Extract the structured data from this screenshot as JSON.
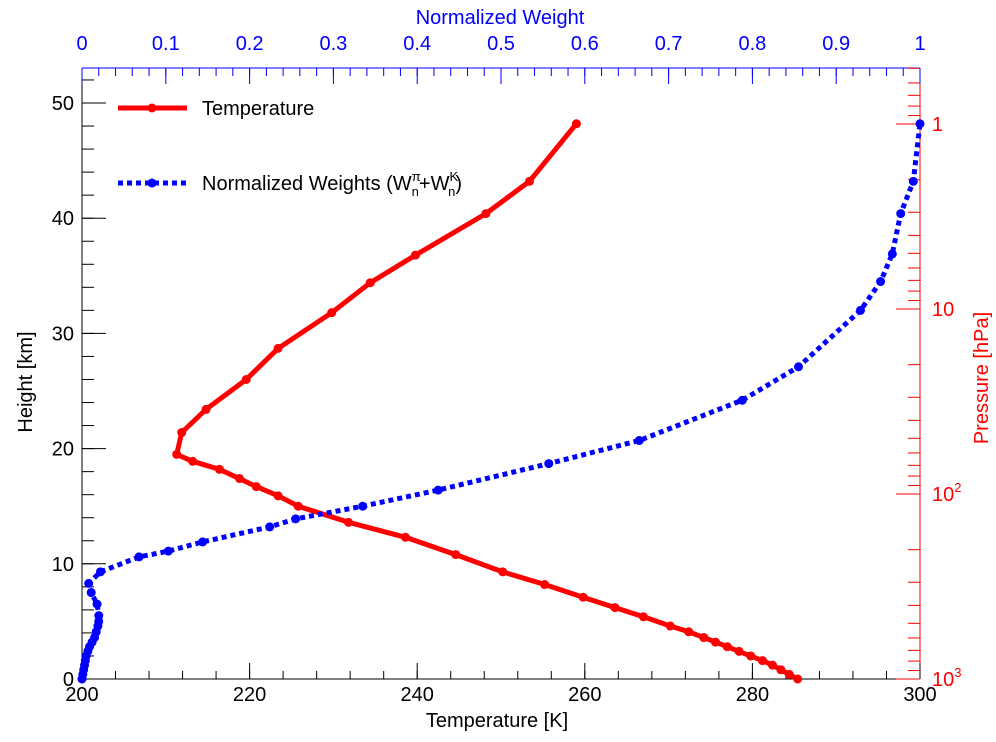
{
  "chart_data": {
    "type": "line",
    "title": "",
    "xlabel": "Temperature [K]",
    "ylabel": "Height [km]",
    "x2label": "Normalized Weight",
    "y2label": "Pressure [hPa]",
    "xlim": [
      200,
      300
    ],
    "ylim": [
      0,
      53
    ],
    "x2lim": [
      0,
      1
    ],
    "x_ticks": [
      "200",
      "220",
      "240",
      "260",
      "280",
      "300"
    ],
    "y_ticks": [
      "0",
      "10",
      "20",
      "30",
      "40",
      "50"
    ],
    "x2_ticks": [
      "0",
      "0.1",
      "0.2",
      "0.3",
      "0.4",
      "0.5",
      "0.6",
      "0.7",
      "0.8",
      "0.9",
      "1"
    ],
    "y2_scale": "log",
    "y2_ticks": [
      {
        "label": "1",
        "sup": "",
        "pressure": 1
      },
      {
        "label": "10",
        "sup": "",
        "pressure": 10
      },
      {
        "label": "10",
        "sup": "2",
        "pressure": 100
      },
      {
        "label": "10",
        "sup": "3",
        "pressure": 1000
      }
    ],
    "legend_position": "top-left",
    "grid": false,
    "series": [
      {
        "name": "Temperature",
        "color": "#ff0000",
        "style": "solid",
        "x_axis": "bottom",
        "points": [
          [
            285.4,
            0.0
          ],
          [
            284.4,
            0.4
          ],
          [
            283.4,
            0.8
          ],
          [
            282.4,
            1.2
          ],
          [
            281.2,
            1.6
          ],
          [
            279.8,
            2.0
          ],
          [
            278.4,
            2.4
          ],
          [
            277.0,
            2.8
          ],
          [
            275.6,
            3.2
          ],
          [
            274.2,
            3.6
          ],
          [
            272.4,
            4.1
          ],
          [
            270.2,
            4.6
          ],
          [
            267.0,
            5.4
          ],
          [
            263.6,
            6.2
          ],
          [
            259.8,
            7.1
          ],
          [
            255.2,
            8.2
          ],
          [
            250.2,
            9.3
          ],
          [
            244.6,
            10.8
          ],
          [
            238.6,
            12.3
          ],
          [
            231.8,
            13.6
          ],
          [
            225.8,
            15.0
          ],
          [
            223.4,
            15.9
          ],
          [
            220.8,
            16.7
          ],
          [
            218.8,
            17.4
          ],
          [
            216.4,
            18.2
          ],
          [
            213.2,
            18.9
          ],
          [
            211.3,
            19.5
          ],
          [
            211.9,
            21.4
          ],
          [
            214.8,
            23.4
          ],
          [
            219.6,
            26.0
          ],
          [
            223.4,
            28.7
          ],
          [
            229.8,
            31.8
          ],
          [
            234.4,
            34.4
          ],
          [
            239.8,
            36.8
          ],
          [
            248.2,
            40.4
          ],
          [
            253.4,
            43.2
          ],
          [
            259.0,
            48.2
          ]
        ]
      },
      {
        "name": "Normalized Weights (W",
        "name_sup1": "π",
        "name_sub1": "n",
        "name_mid": "+W",
        "name_sup2": "K",
        "name_sub2": "n",
        "name_end": ")",
        "color": "#0000ff",
        "style": "dotted",
        "x_axis": "top",
        "points": [
          [
            0.0,
            0.0
          ],
          [
            0.001,
            0.4
          ],
          [
            0.002,
            0.8
          ],
          [
            0.003,
            1.2
          ],
          [
            0.004,
            1.6
          ],
          [
            0.005,
            2.0
          ],
          [
            0.007,
            2.4
          ],
          [
            0.009,
            2.8
          ],
          [
            0.012,
            3.2
          ],
          [
            0.015,
            3.6
          ],
          [
            0.017,
            4.1
          ],
          [
            0.019,
            4.6
          ],
          [
            0.02,
            5.0
          ],
          [
            0.02,
            5.5
          ],
          [
            0.018,
            6.5
          ],
          [
            0.011,
            7.5
          ],
          [
            0.008,
            8.3
          ],
          [
            0.022,
            9.3
          ],
          [
            0.068,
            10.6
          ],
          [
            0.103,
            11.1
          ],
          [
            0.144,
            11.9
          ],
          [
            0.224,
            13.2
          ],
          [
            0.255,
            13.9
          ],
          [
            0.335,
            15.0
          ],
          [
            0.425,
            16.4
          ],
          [
            0.557,
            18.7
          ],
          [
            0.665,
            20.7
          ],
          [
            0.788,
            24.2
          ],
          [
            0.855,
            27.1
          ],
          [
            0.929,
            32.0
          ],
          [
            0.953,
            34.5
          ],
          [
            0.967,
            36.9
          ],
          [
            0.977,
            40.4
          ],
          [
            0.992,
            43.2
          ],
          [
            1.0,
            48.2
          ]
        ]
      }
    ]
  },
  "colors": {
    "temperature": "#ff0000",
    "weights": "#0000ff",
    "axis": "#000000"
  }
}
